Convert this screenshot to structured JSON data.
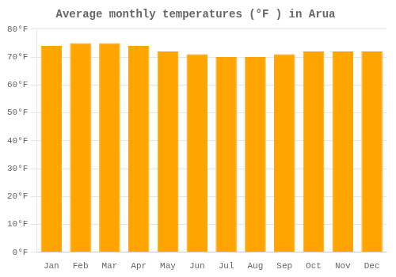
{
  "chart_data": {
    "type": "bar",
    "title": "Average monthly temperatures (°F ) in Arua",
    "categories": [
      "Jan",
      "Feb",
      "Mar",
      "Apr",
      "May",
      "Jun",
      "Jul",
      "Aug",
      "Sep",
      "Oct",
      "Nov",
      "Dec"
    ],
    "values": [
      74,
      75,
      75,
      74,
      72,
      71,
      70,
      70,
      71,
      72,
      72,
      72
    ],
    "color": "#FFA500",
    "ylim": [
      0,
      80
    ],
    "yticks": [
      {
        "value": 0,
        "label": "0°F"
      },
      {
        "value": 10,
        "label": "10°F"
      },
      {
        "value": 20,
        "label": "20°F"
      },
      {
        "value": 30,
        "label": "30°F"
      },
      {
        "value": 40,
        "label": "40°F"
      },
      {
        "value": 50,
        "label": "50°F"
      },
      {
        "value": 60,
        "label": "60°F"
      },
      {
        "value": 70,
        "label": "70°F"
      },
      {
        "value": 80,
        "label": "80°F"
      }
    ],
    "grid": true
  }
}
